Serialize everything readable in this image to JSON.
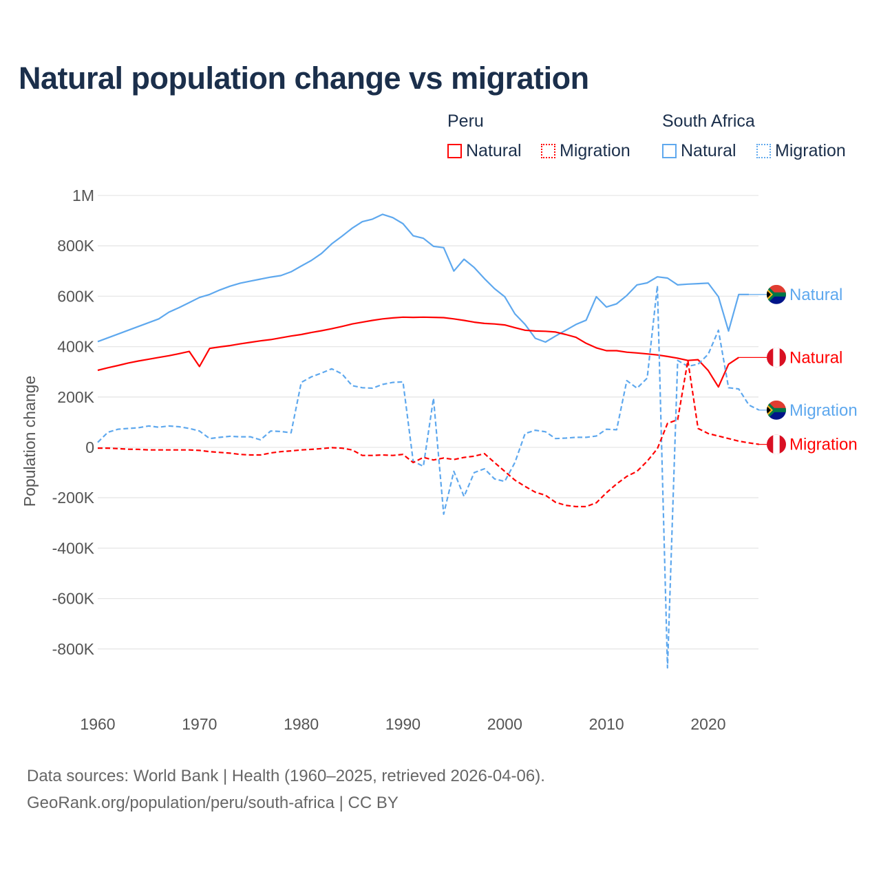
{
  "title": "Natural population change vs migration",
  "legend": {
    "groups": [
      {
        "name": "Peru",
        "items": [
          {
            "label": "Natural",
            "style": "solid"
          },
          {
            "label": "Migration",
            "style": "dotted"
          }
        ],
        "color": "#ff0000"
      },
      {
        "name": "South Africa",
        "items": [
          {
            "label": "Natural",
            "style": "solid"
          },
          {
            "label": "Migration",
            "style": "dotted"
          }
        ],
        "color": "#5ea8ee"
      }
    ]
  },
  "footer": {
    "line1": "Data sources: World Bank | Health (1960–2025, retrieved 2026-04-06).",
    "line2": "GeoRank.org/population/peru/south-africa | CC BY"
  },
  "chart_data": {
    "type": "line",
    "title": "Natural population change vs migration",
    "xlabel": "",
    "ylabel": "Population change",
    "xlim": [
      1960,
      2025
    ],
    "ylim": [
      -1000000,
      1000000
    ],
    "x_ticks": [
      1960,
      1970,
      1980,
      1990,
      2000,
      2010,
      2020
    ],
    "x_tick_labels": [
      "1960",
      "1970",
      "1980",
      "1990",
      "2000",
      "2010",
      "2020"
    ],
    "y_ticks": [
      1000000,
      800000,
      600000,
      400000,
      200000,
      0,
      -200000,
      -400000,
      -600000,
      -800000
    ],
    "y_tick_labels": [
      "1M",
      "800K",
      "600K",
      "400K",
      "200K",
      "0",
      "-200K",
      "-400K",
      "-600K",
      "-800K"
    ],
    "grid": true,
    "legend_position": "top-right",
    "series": [
      {
        "name": "South Africa Natural",
        "end_label": "Natural",
        "country": "South Africa",
        "color": "#5ea8ee",
        "dash": "solid",
        "start_year": 1960,
        "values": [
          420000,
          435000,
          450000,
          465000,
          480000,
          495000,
          510000,
          537000,
          555000,
          575000,
          595000,
          607000,
          625000,
          640000,
          652000,
          660000,
          668000,
          676000,
          682000,
          697000,
          720000,
          742000,
          770000,
          808000,
          838000,
          870000,
          896000,
          906000,
          925000,
          912000,
          888000,
          840000,
          830000,
          798000,
          793000,
          700000,
          747000,
          714000,
          670000,
          630000,
          598000,
          530000,
          488000,
          433000,
          418000,
          442000,
          465000,
          488000,
          505000,
          598000,
          557000,
          570000,
          603000,
          645000,
          653000,
          677000,
          672000,
          645000,
          648000,
          650000,
          652000,
          598000,
          462000,
          607000,
          607000
        ]
      },
      {
        "name": "Peru Natural",
        "end_label": "Natural",
        "country": "Peru",
        "color": "#ff0000",
        "dash": "solid",
        "start_year": 1960,
        "values": [
          306000,
          316000,
          325000,
          335000,
          343000,
          350000,
          357000,
          364000,
          372000,
          381000,
          321000,
          393000,
          399000,
          404000,
          411000,
          417000,
          423000,
          428000,
          435000,
          442000,
          448000,
          456000,
          463000,
          471000,
          480000,
          490000,
          497000,
          504000,
          510000,
          514000,
          517000,
          516000,
          517000,
          516000,
          515000,
          510000,
          504000,
          497000,
          492000,
          490000,
          486000,
          475000,
          465000,
          462000,
          461000,
          458000,
          448000,
          437000,
          413000,
          395000,
          384000,
          384000,
          378000,
          375000,
          371000,
          367000,
          361000,
          354000,
          345000,
          348000,
          305000,
          240000,
          330000,
          357000
        ]
      },
      {
        "name": "South Africa Migration",
        "end_label": "Migration",
        "country": "South Africa",
        "color": "#5ea8ee",
        "dash": "dashed",
        "start_year": 1960,
        "values": [
          20000,
          60000,
          72000,
          75000,
          78000,
          85000,
          80000,
          85000,
          82000,
          75000,
          65000,
          35000,
          40000,
          44000,
          42000,
          42000,
          30000,
          65000,
          63000,
          58000,
          258000,
          280000,
          295000,
          312000,
          292000,
          245000,
          237000,
          235000,
          250000,
          258000,
          260000,
          -55000,
          -75000,
          195000,
          -265000,
          -95000,
          -195000,
          -100000,
          -85000,
          -125000,
          -135000,
          -60000,
          55000,
          68000,
          62000,
          35000,
          37000,
          40000,
          40000,
          45000,
          72000,
          70000,
          265000,
          235000,
          275000,
          642000,
          -875000,
          345000,
          322000,
          330000,
          370000,
          465000,
          237000,
          232000,
          168000,
          148000
        ]
      },
      {
        "name": "Peru Migration",
        "end_label": "Migration",
        "country": "Peru",
        "color": "#ff0000",
        "dash": "dashed",
        "start_year": 1960,
        "values": [
          -3000,
          -3000,
          -5000,
          -7000,
          -8000,
          -10000,
          -10000,
          -10000,
          -10000,
          -10000,
          -12000,
          -17000,
          -20000,
          -23000,
          -28000,
          -30000,
          -30000,
          -22000,
          -17000,
          -14000,
          -10000,
          -8000,
          -5000,
          -1000,
          -3000,
          -10000,
          -32000,
          -32000,
          -30000,
          -32000,
          -28000,
          -60000,
          -40000,
          -50000,
          -42000,
          -48000,
          -40000,
          -35000,
          -25000,
          -60000,
          -95000,
          -130000,
          -155000,
          -178000,
          -190000,
          -218000,
          -230000,
          -235000,
          -235000,
          -220000,
          -180000,
          -145000,
          -115000,
          -95000,
          -55000,
          -5000,
          95000,
          110000,
          345000,
          75000,
          55000,
          45000,
          35000,
          25000,
          18000,
          12000
        ]
      }
    ]
  }
}
